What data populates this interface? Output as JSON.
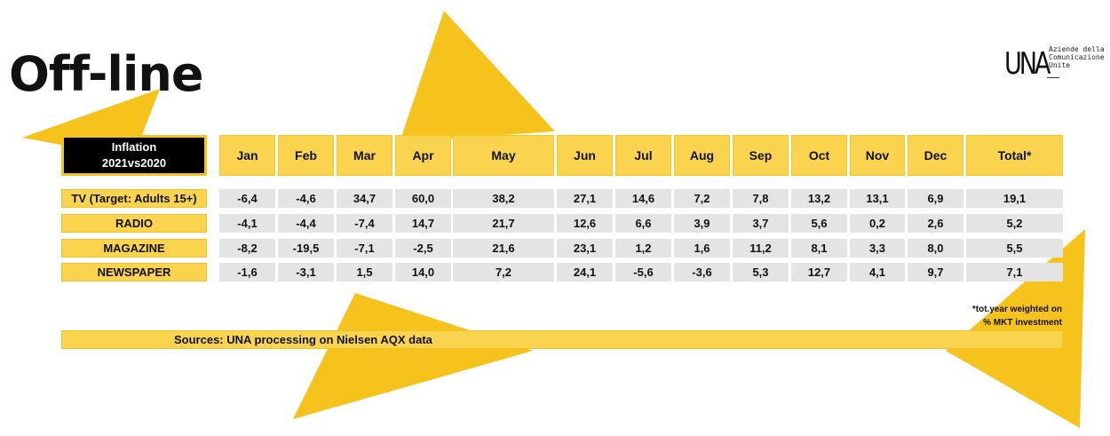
{
  "title": "Off-line",
  "logo": {
    "mark": "UNA",
    "lines": [
      "Aziende della",
      "Comunicazione",
      "Unite"
    ]
  },
  "table": {
    "header_label_lines": [
      "Inflation",
      "2021vs2020"
    ],
    "columns": [
      "Jan",
      "Feb",
      "Mar",
      "Apr",
      "May",
      "Jun",
      "Jul",
      "Aug",
      "Sep",
      "Oct",
      "Nov",
      "Dec",
      "Total*"
    ],
    "rows": [
      {
        "label": "TV (Target: Adults 15+)",
        "values": [
          "-6,4",
          "-4,6",
          "34,7",
          "60,0",
          "38,2",
          "27,1",
          "14,6",
          "7,2",
          "7,8",
          "13,2",
          "13,1",
          "6,9",
          "19,1"
        ]
      },
      {
        "label": "RADIO",
        "values": [
          "-4,1",
          "-4,4",
          "-7,4",
          "14,7",
          "21,7",
          "12,6",
          "6,6",
          "3,9",
          "3,7",
          "5,6",
          "0,2",
          "2,6",
          "5,2"
        ]
      },
      {
        "label": "MAGAZINE",
        "values": [
          "-8,2",
          "-19,5",
          "-7,1",
          "-2,5",
          "21,6",
          "23,1",
          "1,2",
          "1,6",
          "11,2",
          "8,1",
          "3,3",
          "8,0",
          "5,5"
        ]
      },
      {
        "label": "NEWSPAPER",
        "values": [
          "-1,6",
          "-3,1",
          "1,5",
          "14,0",
          "7,2",
          "24,1",
          "-5,6",
          "-3,6",
          "5,3",
          "12,7",
          "4,1",
          "9,7",
          "7,1"
        ]
      }
    ]
  },
  "footnote_lines": [
    "*tot.year weighted on",
    "% MKT investment"
  ],
  "sources": "Sources: UNA processing on Nielsen AQX data",
  "colors": {
    "accent": "#f6c21c",
    "header_fill": "#fad44e",
    "value_fill": "#e4e4e4"
  }
}
